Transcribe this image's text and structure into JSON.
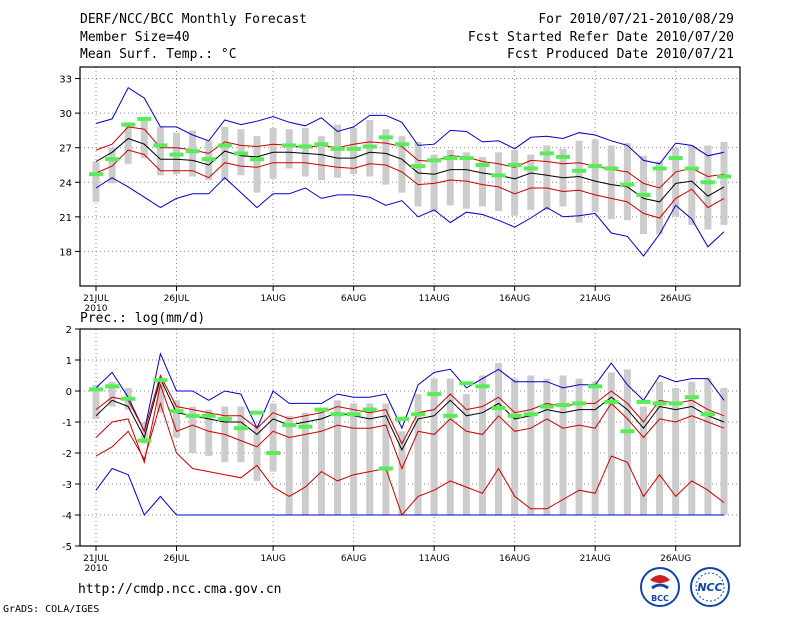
{
  "header": {
    "title": "DERF/NCC/BCC Monthly Forecast",
    "member": "Member Size=40",
    "variable": "Mean Surf. Temp.: °C",
    "period": "For 2010/07/21-2010/08/29",
    "started": "Fcst Started Refer Date 2010/07/20",
    "produced": "Fcst Produced Date 2010/07/21"
  },
  "precip_label": "Prec.: log(mm/d)",
  "url": "http://cmdp.ncc.cma.gov.cn",
  "credit": "GrADS: COLA/IGES",
  "logos": {
    "bcc": "BCC",
    "ncc": "NCC"
  },
  "colors": {
    "ens_max_min": "#0000cc",
    "ens_spread": "#cc0000",
    "ens_mean": "#000000",
    "obs": "#55ee55",
    "box": "#cccccc",
    "grid": "#888888"
  },
  "chart_data": [
    {
      "type": "line",
      "name": "temperature",
      "title": "Mean Surf. Temp.: °C",
      "xlabel": "",
      "ylabel": "°C",
      "ylim": [
        15,
        34
      ],
      "yticks": [
        18,
        21,
        24,
        27,
        30,
        33
      ],
      "xlim": [
        0,
        39
      ],
      "xtick_positions": [
        0,
        5,
        11,
        16,
        21,
        26,
        31,
        36
      ],
      "xtick_labels": [
        "21JUL",
        "26JUL",
        "1AUG",
        "6AUG",
        "11AUG",
        "16AUG",
        "21AUG",
        "26AUG"
      ],
      "year_label": "2010",
      "box_hi": [
        25.8,
        27.0,
        29.2,
        29.5,
        28.8,
        28.3,
        28.5,
        27.6,
        28.8,
        28.6,
        28.0,
        28.7,
        28.6,
        28.7,
        28.0,
        29.0,
        28.7,
        29.4,
        28.6,
        28.0,
        27.5,
        26.4,
        26.8,
        26.6,
        26.2,
        26.6,
        26.8,
        26.4,
        27.2,
        26.9,
        27.6,
        27.7,
        27.2,
        27.4,
        26.3,
        25.8,
        27.0,
        27.2,
        27.2,
        27.5
      ],
      "box_lo": [
        22.3,
        23.9,
        25.6,
        26.1,
        24.6,
        24.7,
        24.5,
        24.2,
        24.2,
        24.6,
        23.1,
        24.3,
        25.2,
        24.5,
        24.2,
        24.4,
        24.7,
        24.5,
        23.8,
        23.1,
        21.9,
        21.4,
        22.0,
        21.7,
        21.9,
        21.5,
        21.1,
        21.6,
        21.6,
        21.9,
        20.5,
        21.4,
        20.8,
        20.7,
        19.5,
        19.5,
        21.0,
        20.3,
        19.9,
        20.3
      ],
      "max": [
        29.1,
        29.5,
        32.2,
        31.3,
        28.8,
        28.8,
        28.1,
        27.6,
        29.4,
        29.0,
        29.3,
        29.7,
        29.2,
        28.9,
        29.6,
        28.4,
        28.8,
        29.8,
        29.8,
        29.2,
        27.2,
        27.3,
        28.5,
        28.4,
        27.5,
        27.6,
        26.9,
        27.9,
        28.0,
        27.8,
        28.3,
        28.1,
        27.6,
        27.2,
        25.9,
        25.6,
        27.4,
        27.2,
        26.3,
        26.6
      ],
      "spread_hi": [
        26.8,
        27.3,
        28.8,
        28.6,
        27.0,
        27.0,
        26.8,
        26.5,
        27.5,
        27.2,
        27.1,
        27.3,
        27.2,
        27.0,
        27.2,
        27.0,
        27.3,
        27.5,
        27.4,
        27.1,
        25.9,
        25.8,
        26.3,
        26.2,
        25.8,
        25.6,
        25.3,
        25.9,
        25.8,
        25.6,
        25.7,
        25.4,
        25.1,
        24.9,
        23.9,
        23.5,
        24.9,
        25.2,
        24.5,
        24.7
      ],
      "mean": [
        25.8,
        26.6,
        27.8,
        27.3,
        26.0,
        26.0,
        25.9,
        25.5,
        26.7,
        26.3,
        26.2,
        26.6,
        26.6,
        26.5,
        26.4,
        26.1,
        26.1,
        26.6,
        26.5,
        26.0,
        24.8,
        24.7,
        25.1,
        25.1,
        24.8,
        24.6,
        24.3,
        24.8,
        24.6,
        24.4,
        24.5,
        24.1,
        23.8,
        23.6,
        22.6,
        22.3,
        23.9,
        24.1,
        22.8,
        23.6
      ],
      "spread_lo": [
        24.8,
        25.4,
        26.8,
        26.4,
        25.0,
        25.0,
        25.0,
        24.4,
        25.7,
        25.4,
        25.3,
        25.7,
        25.7,
        25.7,
        25.5,
        25.3,
        25.2,
        25.6,
        25.5,
        24.9,
        23.8,
        23.9,
        24.2,
        24.1,
        23.8,
        23.6,
        23.0,
        23.5,
        23.5,
        23.2,
        23.3,
        22.9,
        22.6,
        22.3,
        21.3,
        20.9,
        22.6,
        23.4,
        21.8,
        22.6
      ],
      "min": [
        23.5,
        24.4,
        23.6,
        22.7,
        21.8,
        22.6,
        23.0,
        23.0,
        24.4,
        23.1,
        21.8,
        23.0,
        23.0,
        23.5,
        22.6,
        22.9,
        22.9,
        22.7,
        22.0,
        22.4,
        21.0,
        21.6,
        20.5,
        21.4,
        21.2,
        20.7,
        20.1,
        20.9,
        21.8,
        21.0,
        21.1,
        21.3,
        19.6,
        19.3,
        17.6,
        19.5,
        22.0,
        20.8,
        18.4,
        19.7
      ],
      "obs": [
        24.7,
        26.0,
        29.0,
        29.5,
        27.2,
        26.4,
        26.7,
        26.0,
        27.2,
        26.5,
        26.0,
        null,
        27.2,
        27.1,
        27.3,
        26.9,
        26.9,
        27.1,
        27.9,
        27.3,
        25.4,
        25.9,
        26.1,
        26.1,
        25.5,
        24.6,
        25.5,
        25.2,
        26.5,
        26.2,
        25.0,
        25.4,
        25.2,
        23.8,
        22.9,
        25.2,
        26.1,
        25.2,
        24.0,
        24.5
      ]
    },
    {
      "type": "line",
      "name": "precipitation",
      "title": "Prec.: log(mm/d)",
      "xlabel": "",
      "ylabel": "log(mm/d)",
      "ylim": [
        -5,
        2
      ],
      "yticks": [
        -5,
        -4,
        -3,
        -2,
        -1,
        0,
        1,
        2
      ],
      "xlim": [
        0,
        39
      ],
      "xtick_positions": [
        0,
        5,
        11,
        16,
        21,
        26,
        31,
        36
      ],
      "xtick_labels": [
        "21JUL",
        "26JUL",
        "1AUG",
        "6AUG",
        "11AUG",
        "16AUG",
        "21AUG",
        "26AUG"
      ],
      "year_label": "2010",
      "box_hi": [
        0.2,
        0.3,
        0.1,
        -1.0,
        0.3,
        -0.3,
        -0.5,
        -0.6,
        -0.5,
        -0.5,
        -1.1,
        -0.4,
        -0.8,
        -0.7,
        -0.6,
        -0.3,
        -0.4,
        -0.4,
        -0.4,
        -1.3,
        -0.1,
        0.4,
        0.4,
        -0.1,
        0.5,
        0.9,
        0.4,
        0.5,
        0.4,
        0.5,
        0.4,
        0.3,
        0.6,
        0.7,
        -0.5,
        0.3,
        0.1,
        0.3,
        0.4,
        0.1
      ],
      "box_lo": [
        -0.9,
        -0.5,
        -0.6,
        -1.7,
        -0.7,
        -1.5,
        -2.0,
        -2.1,
        -2.3,
        -2.3,
        -2.9,
        -2.6,
        -4.0,
        -4.0,
        -4.0,
        -4.0,
        -4.0,
        -4.0,
        -4.0,
        -4.0,
        -4.0,
        -4.0,
        -4.0,
        -4.0,
        -4.0,
        -4.0,
        -4.0,
        -4.0,
        -4.0,
        -4.0,
        -4.0,
        -4.0,
        -4.0,
        -4.0,
        -4.0,
        -4.0,
        -4.0,
        -4.0,
        -4.0,
        -4.0
      ],
      "max": [
        0.1,
        0.6,
        -0.2,
        -1.3,
        1.2,
        0.0,
        0.0,
        -0.3,
        0.0,
        -0.1,
        -1.2,
        0.0,
        -0.4,
        -0.4,
        -0.4,
        -0.1,
        -0.2,
        -0.2,
        -0.1,
        -1.2,
        0.2,
        0.6,
        0.7,
        0.1,
        0.4,
        0.7,
        0.3,
        0.3,
        0.3,
        0.1,
        0.2,
        0.2,
        0.9,
        0.2,
        -0.3,
        0.5,
        0.3,
        0.4,
        0.4,
        -0.3
      ],
      "mean": [
        -0.8,
        -0.3,
        -0.5,
        -1.5,
        0.4,
        -0.7,
        -0.8,
        -0.9,
        -1.0,
        -1.0,
        -1.4,
        -0.9,
        -1.1,
        -1.0,
        -0.9,
        -0.7,
        -0.8,
        -0.9,
        -0.8,
        -1.9,
        -0.9,
        -0.8,
        -0.3,
        -0.8,
        -0.7,
        -0.4,
        -0.9,
        -0.8,
        -0.6,
        -0.7,
        -0.6,
        -0.6,
        -0.2,
        -0.6,
        -1.2,
        -0.5,
        -0.6,
        -0.5,
        -0.8,
        -1.0
      ],
      "spread_hi": [
        -0.6,
        -0.2,
        -0.3,
        -1.3,
        0.5,
        -0.5,
        -0.6,
        -0.7,
        -0.8,
        -0.8,
        -1.2,
        -0.7,
        -0.9,
        -0.8,
        -0.7,
        -0.5,
        -0.6,
        -0.7,
        -0.6,
        -1.7,
        -0.7,
        -0.6,
        -0.1,
        -0.6,
        -0.5,
        -0.2,
        -0.7,
        -0.6,
        -0.4,
        -0.5,
        -0.4,
        -0.4,
        0.0,
        -0.4,
        -1.0,
        -0.3,
        -0.4,
        -0.3,
        -0.6,
        -0.8
      ],
      "spread_lo": [
        -1.5,
        -1.0,
        -0.9,
        -2.3,
        0.2,
        -1.3,
        -1.1,
        -1.3,
        -1.4,
        -1.6,
        -1.8,
        -1.3,
        -1.5,
        -1.4,
        -1.3,
        -1.1,
        -1.2,
        -1.2,
        -1.1,
        -2.5,
        -1.3,
        -1.4,
        -0.9,
        -1.3,
        -1.4,
        -0.8,
        -1.3,
        -1.2,
        -0.9,
        -1.2,
        -1.1,
        -1.2,
        -0.4,
        -0.9,
        -1.5,
        -0.9,
        -1.0,
        -0.8,
        -1.0,
        -1.2
      ],
      "lower": [
        -2.1,
        -1.8,
        -1.3,
        -2.2,
        -0.4,
        -2.0,
        -2.5,
        -2.6,
        -2.7,
        -2.8,
        -2.4,
        -3.1,
        -3.4,
        -3.1,
        -2.6,
        -2.9,
        -2.7,
        -2.6,
        -2.5,
        -4.0,
        -3.4,
        -3.2,
        -2.9,
        -3.1,
        -3.3,
        -2.5,
        -3.4,
        -3.8,
        -3.8,
        -3.5,
        -3.2,
        -3.3,
        -2.1,
        -2.3,
        -3.4,
        -2.7,
        -3.4,
        -2.9,
        -3.2,
        -3.6
      ],
      "min": [
        -3.2,
        -2.5,
        -2.7,
        -4.0,
        -3.4,
        -4.0,
        -4.0,
        -4.0,
        -4.0,
        -4.0,
        -4.0,
        -4.0,
        -4.0,
        -4.0,
        -4.0,
        -4.0,
        -4.0,
        -4.0,
        -4.0,
        -4.0,
        -4.0,
        -4.0,
        -4.0,
        -4.0,
        -4.0,
        -4.0,
        -4.0,
        -4.0,
        -4.0,
        -4.0,
        -4.0,
        -4.0,
        -4.0,
        -4.0,
        -4.0,
        -4.0,
        -4.0,
        -4.0,
        -4.0,
        -4.0
      ],
      "obs": [
        0.05,
        0.15,
        -0.25,
        -1.6,
        0.35,
        -0.65,
        -0.8,
        -0.8,
        -0.9,
        -1.2,
        -0.7,
        -2.0,
        -1.1,
        -1.15,
        -0.6,
        -0.75,
        -0.75,
        -0.6,
        -2.5,
        -0.9,
        -0.75,
        -0.1,
        -0.8,
        0.25,
        0.15,
        -0.55,
        -0.8,
        -0.75,
        -0.5,
        -0.45,
        -0.4,
        0.15,
        -0.35,
        -1.3,
        -0.35,
        -0.4,
        -0.4,
        -0.2,
        -0.75,
        null
      ]
    }
  ]
}
